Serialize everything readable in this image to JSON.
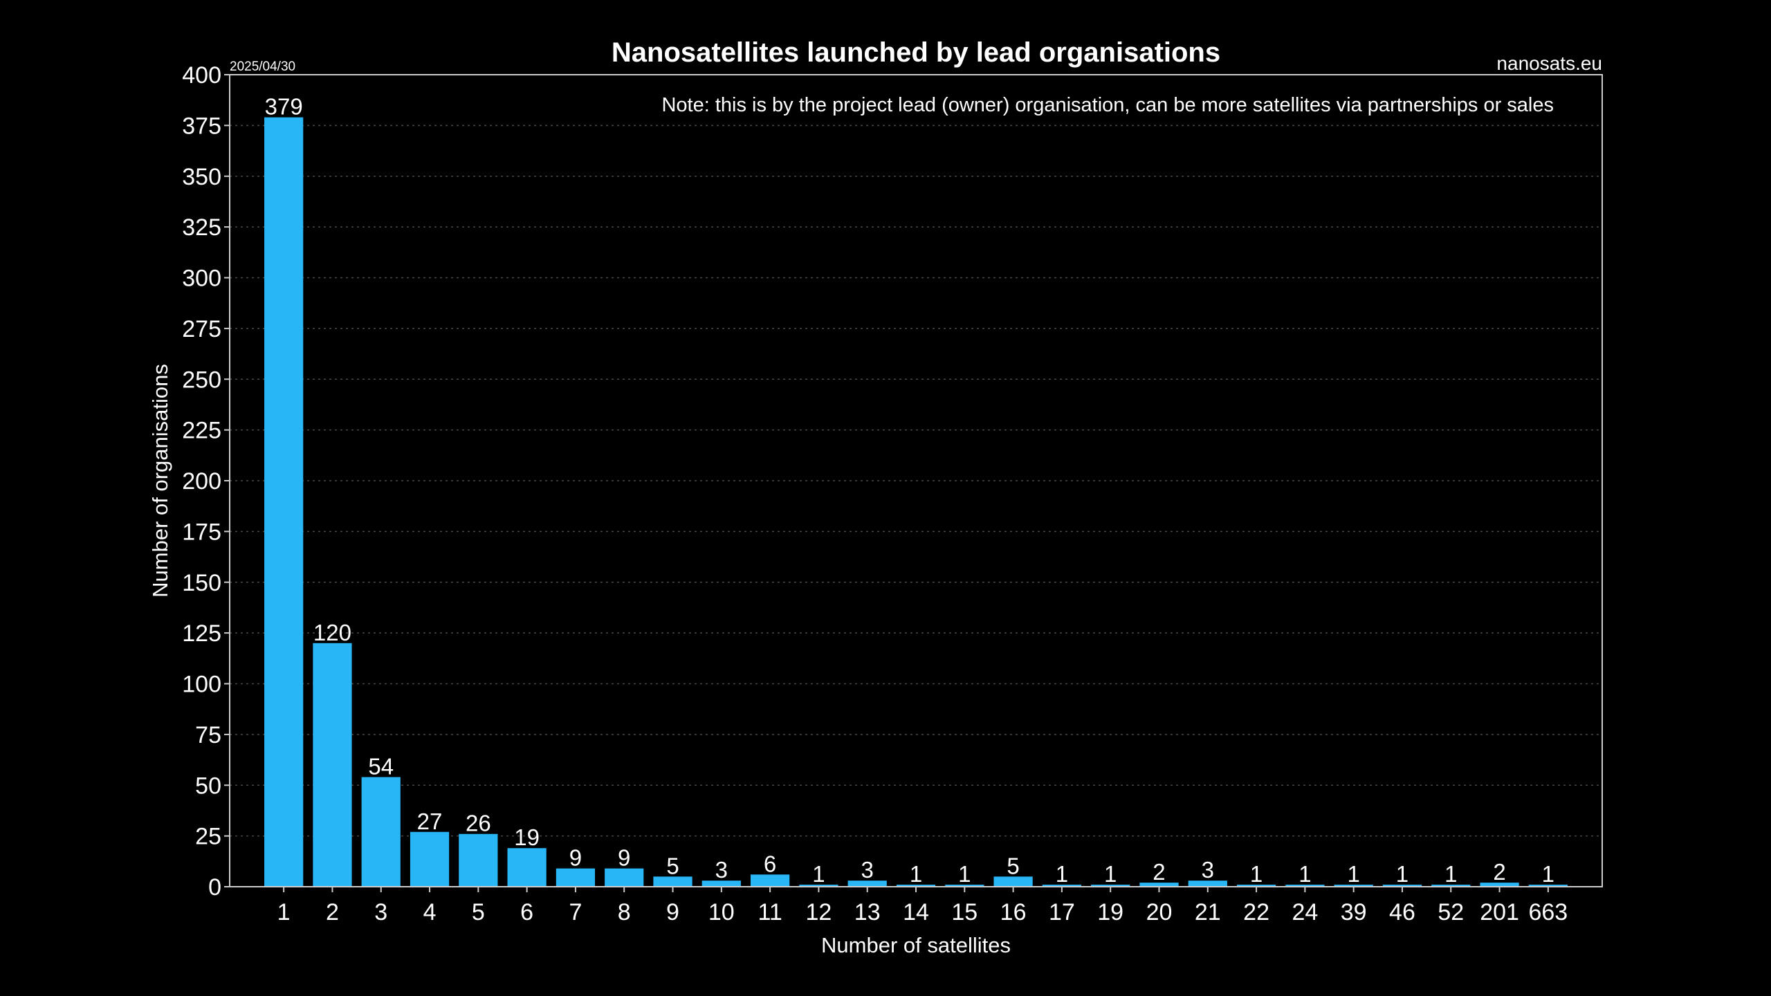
{
  "chart_data": {
    "type": "bar",
    "title": "Nanosatellites launched by lead organisations",
    "date": "2025/04/30",
    "source": "nanosats.eu",
    "note": "Note: this is by the project lead (owner) organisation, can be more satellites via partnerships or sales",
    "xlabel": "Number of satellites",
    "ylabel": "Number of organisations",
    "ylim": [
      0,
      400
    ],
    "yticks": [
      0,
      25,
      50,
      75,
      100,
      125,
      150,
      175,
      200,
      225,
      250,
      275,
      300,
      325,
      350,
      375,
      400
    ],
    "grid": true,
    "bar_color": "#29b6f6",
    "background_color": "#000000",
    "categories": [
      "1",
      "2",
      "3",
      "4",
      "5",
      "6",
      "7",
      "8",
      "9",
      "10",
      "11",
      "12",
      "13",
      "14",
      "15",
      "16",
      "17",
      "19",
      "20",
      "21",
      "22",
      "24",
      "39",
      "46",
      "52",
      "201",
      "663"
    ],
    "values": [
      379,
      120,
      54,
      27,
      26,
      19,
      9,
      9,
      5,
      3,
      6,
      1,
      3,
      1,
      1,
      5,
      1,
      1,
      2,
      3,
      1,
      1,
      1,
      1,
      1,
      2,
      1
    ]
  }
}
